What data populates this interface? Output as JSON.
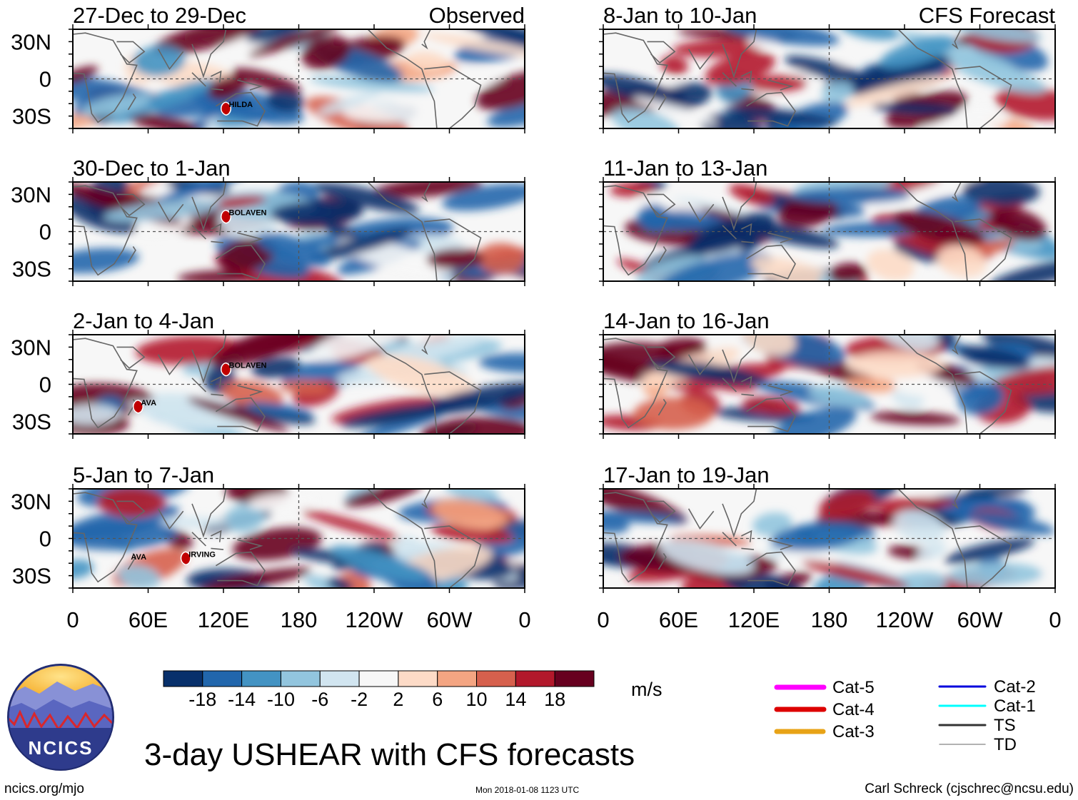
{
  "header": {
    "left_tag": "Observed",
    "right_tag": "CFS Forecast"
  },
  "chart_data": {
    "type": "heatmap",
    "title": "3-day USHEAR with CFS forecasts",
    "variable": "USHEAR",
    "units": "m/s",
    "colorbar": {
      "ticks": [
        "-18",
        "-14",
        "-10",
        "-6",
        "-2",
        "2",
        "6",
        "10",
        "14",
        "18"
      ],
      "bins": [
        -22,
        -18,
        -14,
        -10,
        -6,
        -2,
        2,
        6,
        10,
        14,
        18,
        22
      ],
      "colors": [
        "#08306b",
        "#2166ac",
        "#4393c3",
        "#92c5de",
        "#d1e5f0",
        "#f7f7f7",
        "#fddbc7",
        "#f4a582",
        "#d6604d",
        "#b2182b",
        "#67001f"
      ]
    },
    "x_ticks": [
      "0",
      "60E",
      "120E",
      "180",
      "120W",
      "60W",
      "0"
    ],
    "y_ticks": [
      "30N",
      "0",
      "30S"
    ],
    "panels": [
      {
        "column": "Observed",
        "period": "27-Dec to 29-Dec",
        "storms": [
          {
            "name": "HILDA",
            "category": "Cat-4"
          }
        ]
      },
      {
        "column": "Observed",
        "period": "30-Dec to 1-Jan",
        "storms": [
          {
            "name": "BOLAVEN",
            "category": "Cat-4"
          }
        ]
      },
      {
        "column": "Observed",
        "period": "2-Jan to 4-Jan",
        "storms": [
          {
            "name": "BOLAVEN",
            "category": "Cat-4"
          },
          {
            "name": "AVA",
            "category": "Cat-4"
          }
        ]
      },
      {
        "column": "Observed",
        "period": "5-Jan to 7-Jan",
        "storms": [
          {
            "name": "AVA",
            "category": "TD"
          },
          {
            "name": "IRVING",
            "category": "Cat-4"
          }
        ]
      },
      {
        "column": "CFS Forecast",
        "period": "8-Jan to 10-Jan",
        "storms": []
      },
      {
        "column": "CFS Forecast",
        "period": "11-Jan to 13-Jan",
        "storms": []
      },
      {
        "column": "CFS Forecast",
        "period": "14-Jan to 16-Jan",
        "storms": []
      },
      {
        "column": "CFS Forecast",
        "period": "17-Jan to 19-Jan",
        "storms": []
      }
    ]
  },
  "legend": {
    "items": [
      {
        "label": "Cat-5",
        "color": "#ff00ff"
      },
      {
        "label": "Cat-4",
        "color": "#dd0000"
      },
      {
        "label": "Cat-3",
        "color": "#e8a317"
      },
      {
        "label": "Cat-2",
        "color": "#0000dd"
      },
      {
        "label": "Cat-1",
        "color": "#00ffff"
      },
      {
        "label": "TS",
        "color": "#333333"
      },
      {
        "label": "TD",
        "color": "#999999"
      }
    ]
  },
  "logo": {
    "text": "NCICS"
  },
  "footer": {
    "left": "ncics.org/mjo",
    "center": "Mon 2018-01-08 1123 UTC",
    "right": "Carl Schreck (cjschrec@ncsu.edu)"
  }
}
